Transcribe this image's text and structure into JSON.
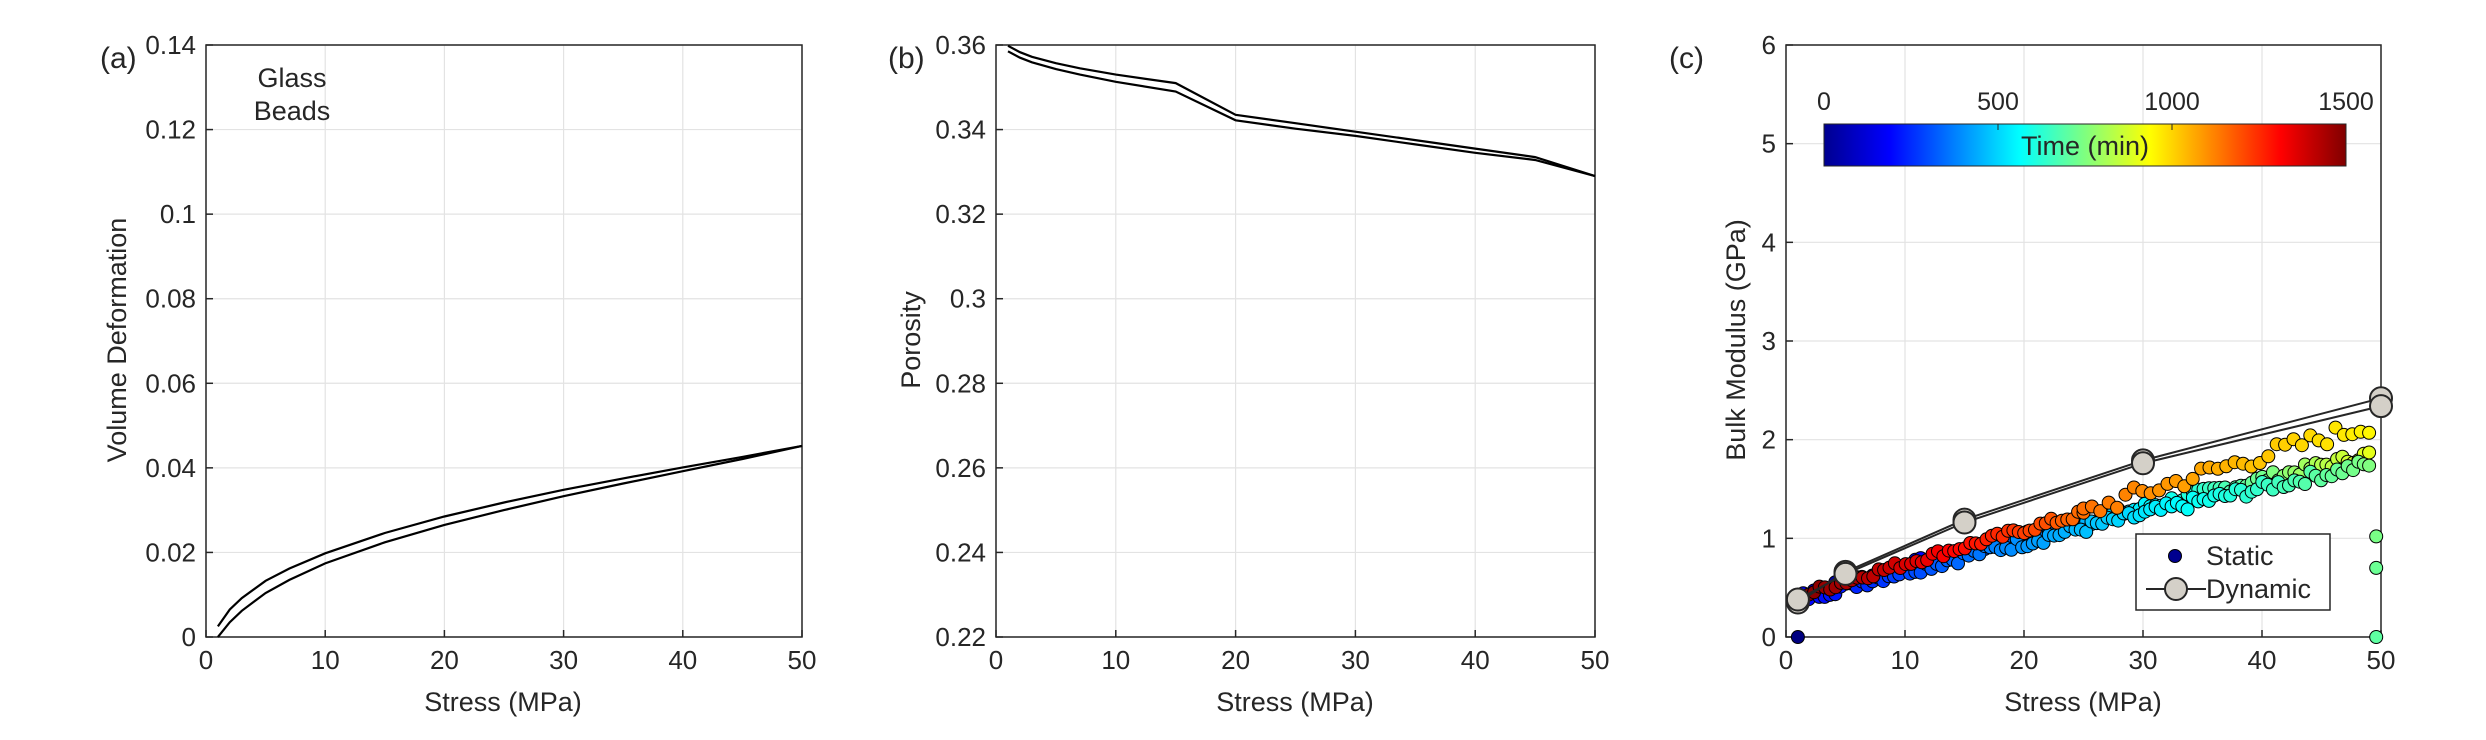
{
  "chart_data": [
    {
      "panel_label": "(a)",
      "type": "line",
      "xlabel": "Stress (MPa)",
      "ylabel": "Volume Deformation",
      "xlim": [
        0,
        50
      ],
      "ylim": [
        0,
        0.14
      ],
      "xticks": [
        0,
        10,
        20,
        30,
        40,
        50
      ],
      "yticks": [
        0,
        0.02,
        0.04,
        0.06,
        0.08,
        0.1,
        0.12,
        0.14
      ],
      "yticklabels": [
        "0",
        "0.02",
        "0.04",
        "0.06",
        "0.08",
        "0.1",
        "0.12",
        "0.14"
      ],
      "grid": true,
      "annotation": [
        "Glass",
        "Beads"
      ],
      "series": [
        {
          "x": [
            1,
            2,
            3,
            5,
            7,
            10,
            15,
            20,
            25,
            30,
            35,
            40,
            45,
            50
          ],
          "y": [
            0.0025,
            0.0065,
            0.0092,
            0.0133,
            0.0162,
            0.0198,
            0.0246,
            0.0285,
            0.0318,
            0.0348,
            0.0375,
            0.0401,
            0.0426,
            0.0452
          ]
        },
        {
          "x": [
            1,
            2,
            3,
            5,
            7,
            10,
            15,
            20,
            25,
            30,
            35,
            40,
            45,
            50
          ],
          "y": [
            0.0,
            0.0035,
            0.0062,
            0.0104,
            0.0135,
            0.0174,
            0.0224,
            0.0265,
            0.03,
            0.0333,
            0.0363,
            0.0392,
            0.0421,
            0.0452
          ]
        }
      ]
    },
    {
      "panel_label": "(b)",
      "type": "line",
      "xlabel": "Stress (MPa)",
      "ylabel": "Porosity",
      "xlim": [
        0,
        50
      ],
      "ylim": [
        0.22,
        0.36
      ],
      "xticks": [
        0,
        10,
        20,
        30,
        40,
        50
      ],
      "yticks": [
        0.22,
        0.24,
        0.26,
        0.28,
        0.3,
        0.32,
        0.34,
        0.36
      ],
      "yticklabels": [
        "0.22",
        "0.24",
        "0.26",
        "0.28",
        "0.3",
        "0.32",
        "0.34",
        "0.36"
      ],
      "grid": true,
      "series": [
        {
          "x": [
            1,
            2,
            3,
            5,
            7,
            10,
            15,
            20,
            25,
            30,
            35,
            40,
            45,
            50
          ],
          "y": [
            0.3598,
            0.3583,
            0.3572,
            0.3557,
            0.3545,
            0.353,
            0.351,
            0.3435,
            0.3415,
            0.3395,
            0.3375,
            0.3355,
            0.3335,
            0.329
          ]
        },
        {
          "x": [
            1,
            2,
            3,
            5,
            7,
            10,
            15,
            20,
            25,
            30,
            35,
            40,
            45,
            50
          ],
          "y": [
            0.3585,
            0.357,
            0.3559,
            0.3543,
            0.353,
            0.3513,
            0.349,
            0.3422,
            0.3402,
            0.3385,
            0.3365,
            0.3345,
            0.3328,
            0.329
          ]
        }
      ]
    },
    {
      "panel_label": "(c)",
      "type": "scatter",
      "xlabel": "Stress (MPa)",
      "ylabel": "Bulk Modulus (GPa)",
      "xlim": [
        0,
        50
      ],
      "ylim": [
        0,
        6
      ],
      "xticks": [
        0,
        10,
        20,
        30,
        40,
        50
      ],
      "yticks": [
        0,
        1,
        2,
        3,
        4,
        5,
        6
      ],
      "yticklabels": [
        "0",
        "1",
        "2",
        "3",
        "4",
        "5",
        "6"
      ],
      "grid": true,
      "colorbar": {
        "label": "Time (min)",
        "range": [
          0,
          1500
        ],
        "ticks": [
          0,
          500,
          1000,
          1500
        ],
        "colormap": "jet"
      },
      "legend": {
        "location": "bottom-right",
        "entries": [
          "Static",
          "Dynamic"
        ]
      },
      "static_segments": [
        {
          "x0": 1,
          "x1": 49,
          "y0": 0.4,
          "y1": 1.85,
          "t0": 0,
          "t1": 900,
          "step": 0.45,
          "noise": 0.05
        },
        {
          "x0": 1,
          "x1": 49,
          "y0": 0.38,
          "y1": 1.75,
          "t0": 180,
          "t1": 750,
          "step": 0.45,
          "noise": 0.06
        },
        {
          "x0": 1,
          "x1": 25,
          "y0": 0.4,
          "y1": 1.25,
          "t0": 1500,
          "t1": 1150,
          "step": 0.45,
          "noise": 0.04
        },
        {
          "x0": 25,
          "x1": 49,
          "y0": 1.25,
          "y1": 2.15,
          "t0": 1150,
          "t1": 950,
          "step": 0.7,
          "noise": 0.09
        }
      ],
      "static_points": [
        {
          "x": 1,
          "y": 0.0,
          "t": 0
        },
        {
          "x": 49.6,
          "y": 0.0,
          "t": 700
        },
        {
          "x": 49.6,
          "y": 0.7,
          "t": 720
        },
        {
          "x": 49.6,
          "y": 1.02,
          "t": 740
        }
      ],
      "dynamic_series": [
        {
          "x": [
            1,
            5,
            15,
            30,
            50
          ],
          "y": [
            0.35,
            0.66,
            1.19,
            1.79,
            2.42
          ]
        },
        {
          "x": [
            1,
            5,
            15,
            30,
            50
          ],
          "y": [
            0.38,
            0.64,
            1.16,
            1.76,
            2.34
          ]
        }
      ]
    }
  ]
}
